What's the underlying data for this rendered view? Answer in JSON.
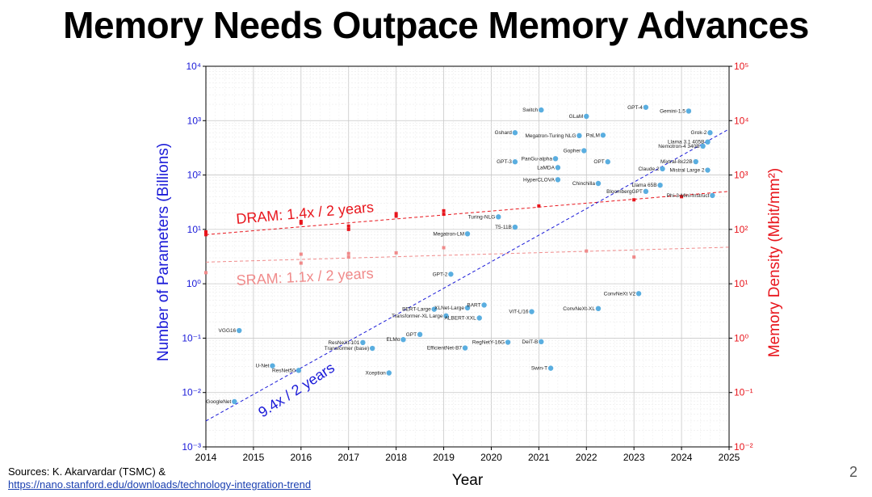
{
  "slide": {
    "title": "Memory Needs Outpace Memory Advances",
    "sources_prefix": "Sources: K. Akarvardar (TSMC) &",
    "sources_link": "https://nano.stanford.edu/downloads/technology-integration-trend",
    "page_number": "2"
  },
  "chart_data": {
    "type": "scatter",
    "title": "",
    "xlabel": "Year",
    "ylabel_left": "Number of Parameters (Billions)",
    "ylabel_right": "Memory Density (Mbit/mm²)",
    "xlim": [
      2014,
      2025
    ],
    "xticks": [
      2014,
      2015,
      2016,
      2017,
      2018,
      2019,
      2020,
      2021,
      2022,
      2023,
      2024,
      2025
    ],
    "ylim_left_log10": [
      -3,
      4
    ],
    "ylim_right_log10": [
      -2,
      5
    ],
    "yticks_left": [
      {
        "exp": -3,
        "label": "10⁻³"
      },
      {
        "exp": -2,
        "label": "10⁻²"
      },
      {
        "exp": -1,
        "label": "10⁻¹"
      },
      {
        "exp": 0,
        "label": "10⁰"
      },
      {
        "exp": 1,
        "label": "10¹"
      },
      {
        "exp": 2,
        "label": "10²"
      },
      {
        "exp": 3,
        "label": "10³"
      },
      {
        "exp": 4,
        "label": "10⁴"
      }
    ],
    "yticks_right": [
      {
        "exp": -2,
        "label": "10⁻²"
      },
      {
        "exp": -1,
        "label": "10⁻¹"
      },
      {
        "exp": 0,
        "label": "10⁰"
      },
      {
        "exp": 1,
        "label": "10¹"
      },
      {
        "exp": 2,
        "label": "10²"
      },
      {
        "exp": 3,
        "label": "10³"
      },
      {
        "exp": 4,
        "label": "10⁴"
      },
      {
        "exp": 5,
        "label": "10⁵"
      }
    ],
    "colors": {
      "models": "#5aaee0",
      "dram": "#e8151c",
      "sram": "#f08a8a",
      "model_trend": "#1a1ad8",
      "left_axis": "#1a1ad8",
      "right_axis": "#e8151c"
    },
    "models": [
      {
        "name": "GoogleNet",
        "year": 2014.6,
        "params_b": 0.0068
      },
      {
        "name": "VGG16",
        "year": 2014.7,
        "params_b": 0.138
      },
      {
        "name": "U-Net",
        "year": 2015.4,
        "params_b": 0.031
      },
      {
        "name": "ResNet50",
        "year": 2015.95,
        "params_b": 0.0255
      },
      {
        "name": "ResNeXt-101",
        "year": 2017.3,
        "params_b": 0.083
      },
      {
        "name": "Transformer (base)",
        "year": 2017.5,
        "params_b": 0.065
      },
      {
        "name": "Xception",
        "year": 2017.85,
        "params_b": 0.0229
      },
      {
        "name": "ELMo",
        "year": 2018.15,
        "params_b": 0.094
      },
      {
        "name": "GPT",
        "year": 2018.5,
        "params_b": 0.117
      },
      {
        "name": "BERT-Large",
        "year": 2018.8,
        "params_b": 0.34
      },
      {
        "name": "Transformer-XL Large",
        "year": 2019.05,
        "params_b": 0.257
      },
      {
        "name": "GPT-2",
        "year": 2019.15,
        "params_b": 1.5
      },
      {
        "name": "XLNet-Large",
        "year": 2019.5,
        "params_b": 0.36
      },
      {
        "name": "ALBERT-XXL",
        "year": 2019.75,
        "params_b": 0.235
      },
      {
        "name": "EfficientNet-B7",
        "year": 2019.45,
        "params_b": 0.066
      },
      {
        "name": "BART",
        "year": 2019.85,
        "params_b": 0.406
      },
      {
        "name": "Megatron-LM",
        "year": 2019.5,
        "params_b": 8.3
      },
      {
        "name": "Turing-NLG",
        "year": 2020.15,
        "params_b": 17
      },
      {
        "name": "T5-11B",
        "year": 2020.5,
        "params_b": 11
      },
      {
        "name": "RegNetY-16G",
        "year": 2020.35,
        "params_b": 0.084
      },
      {
        "name": "GPT-3",
        "year": 2020.5,
        "params_b": 175
      },
      {
        "name": "Gshard",
        "year": 2020.5,
        "params_b": 600
      },
      {
        "name": "ViT-L/16",
        "year": 2020.85,
        "params_b": 0.307
      },
      {
        "name": "Switch",
        "year": 2021.05,
        "params_b": 1571
      },
      {
        "name": "PanGu-alpha",
        "year": 2021.35,
        "params_b": 200
      },
      {
        "name": "LaMDA",
        "year": 2021.4,
        "params_b": 137
      },
      {
        "name": "HyperCLOVA",
        "year": 2021.4,
        "params_b": 82
      },
      {
        "name": "DeiT-B",
        "year": 2021.05,
        "params_b": 0.086
      },
      {
        "name": "Swin-T",
        "year": 2021.25,
        "params_b": 0.028
      },
      {
        "name": "Megatron-Turing NLG",
        "year": 2021.85,
        "params_b": 530
      },
      {
        "name": "Gopher",
        "year": 2021.95,
        "params_b": 280
      },
      {
        "name": "GLaM",
        "year": 2022.0,
        "params_b": 1200
      },
      {
        "name": "PaLM",
        "year": 2022.35,
        "params_b": 540
      },
      {
        "name": "OPT",
        "year": 2022.45,
        "params_b": 175
      },
      {
        "name": "Chinchilla",
        "year": 2022.25,
        "params_b": 70
      },
      {
        "name": "ConvNeXt-XL",
        "year": 2022.25,
        "params_b": 0.35
      },
      {
        "name": "BloombergGPT",
        "year": 2023.25,
        "params_b": 50
      },
      {
        "name": "Llama 65B",
        "year": 2023.55,
        "params_b": 65
      },
      {
        "name": "ConvNeXt V2",
        "year": 2023.1,
        "params_b": 0.66
      },
      {
        "name": "GPT-4",
        "year": 2023.25,
        "params_b": 1760
      },
      {
        "name": "Claude 2",
        "year": 2023.6,
        "params_b": 130
      },
      {
        "name": "Gemini-1.5",
        "year": 2024.15,
        "params_b": 1500
      },
      {
        "name": "Mixtral-8x22B",
        "year": 2024.3,
        "params_b": 176
      },
      {
        "name": "Mistral Large 2",
        "year": 2024.55,
        "params_b": 123
      },
      {
        "name": "Phi-3-Mini-Instruct",
        "year": 2024.65,
        "params_b": 42
      },
      {
        "name": "Llama 3.1 405B",
        "year": 2024.55,
        "params_b": 405
      },
      {
        "name": "Nemotron-4 340B",
        "year": 2024.45,
        "params_b": 340
      },
      {
        "name": "Grok-2",
        "year": 2024.6,
        "params_b": 600
      }
    ],
    "dram_points": [
      {
        "year": 2014,
        "density": 90
      },
      {
        "year": 2014,
        "density": 80
      },
      {
        "year": 2016,
        "density": 140
      },
      {
        "year": 2016,
        "density": 130
      },
      {
        "year": 2017,
        "density": 115
      },
      {
        "year": 2017,
        "density": 100
      },
      {
        "year": 2018,
        "density": 195
      },
      {
        "year": 2018,
        "density": 175
      },
      {
        "year": 2019,
        "density": 220
      },
      {
        "year": 2019,
        "density": 190
      },
      {
        "year": 2021,
        "density": 270
      },
      {
        "year": 2023,
        "density": 350
      },
      {
        "year": 2024,
        "density": 400
      }
    ],
    "sram_points": [
      {
        "year": 2014,
        "density": 16
      },
      {
        "year": 2016,
        "density": 35
      },
      {
        "year": 2016,
        "density": 24
      },
      {
        "year": 2017,
        "density": 36
      },
      {
        "year": 2017,
        "density": 31
      },
      {
        "year": 2018,
        "density": 37
      },
      {
        "year": 2019,
        "density": 46
      },
      {
        "year": 2022,
        "density": 40
      },
      {
        "year": 2023,
        "density": 31
      }
    ],
    "trends": [
      {
        "label": "DRAM: 1.4x / 2 years",
        "axis": "right",
        "start": {
          "year": 2014,
          "value": 80
        },
        "end": {
          "year": 2025,
          "value": 500
        }
      },
      {
        "label": "SRAM: 1.1x / 2 years",
        "axis": "right",
        "start": {
          "year": 2014,
          "value": 25
        },
        "end": {
          "year": 2025,
          "value": 47
        }
      },
      {
        "label": "9.4x / 2 years",
        "axis": "left",
        "start": {
          "year": 2014,
          "value": 0.003
        },
        "end": {
          "year": 2025,
          "value": 700
        }
      }
    ]
  }
}
